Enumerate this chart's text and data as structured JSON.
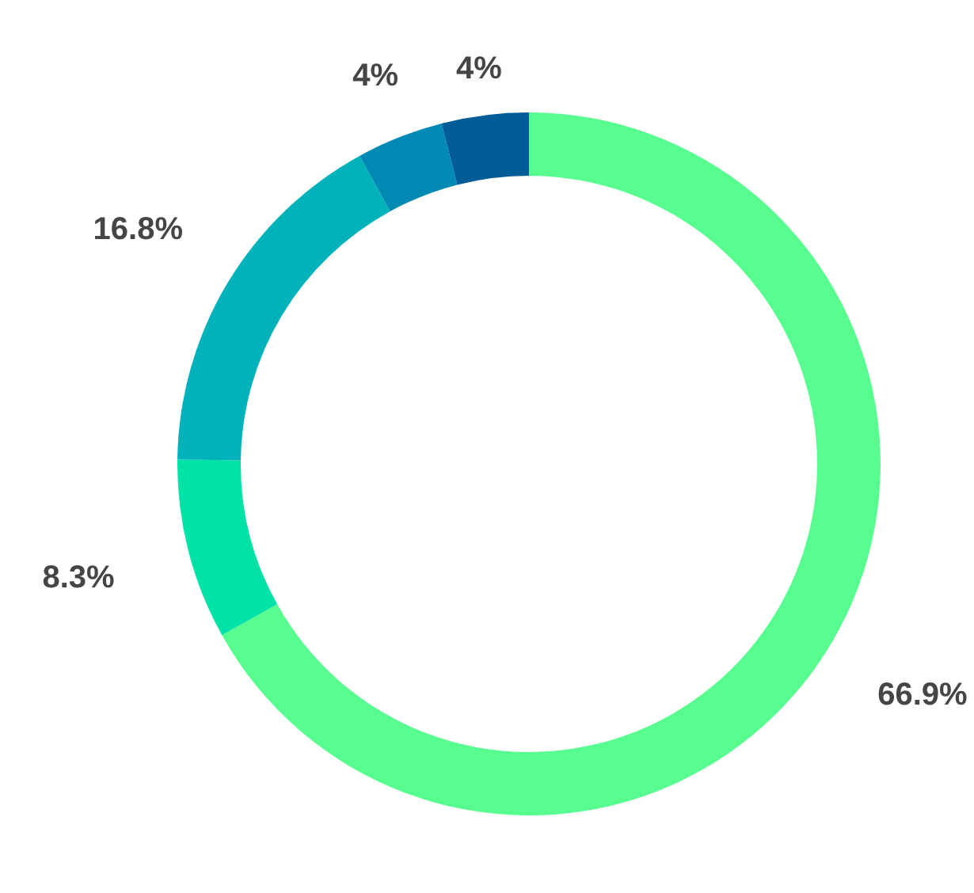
{
  "chart_data": {
    "type": "donut",
    "categories": [
      null,
      null,
      null,
      null,
      null
    ],
    "values": [
      66.9,
      8.3,
      16.8,
      4,
      4
    ],
    "colors": [
      "#57fd8f",
      "#00e2a8",
      "#00b2b9",
      "#0089b3",
      "#005d98"
    ],
    "value_labels": [
      "66.9%",
      "8.3%",
      "16.8%",
      "4%",
      "4%"
    ]
  }
}
